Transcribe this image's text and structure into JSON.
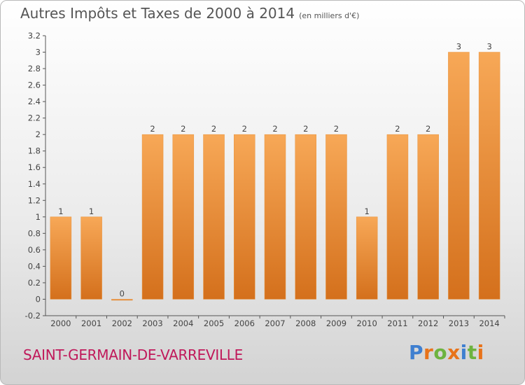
{
  "title": "Autres Impôts et Taxes de 2000 à 2014",
  "subtitle": "(en milliers d'€)",
  "town": "SAINT-GERMAIN-DE-VARREVILLE",
  "logo": {
    "letters": [
      "P",
      "r",
      "o",
      "x",
      "i",
      "t",
      "i"
    ],
    "colors": [
      "#3f7fd0",
      "#e8731a",
      "#6db33f",
      "#e8731a",
      "#3f7fd0",
      "#6db33f",
      "#e8731a"
    ]
  },
  "colors": {
    "bar_light": "#f7a857",
    "bar_dark": "#d4701c",
    "town": "#c0185a"
  },
  "chart_data": {
    "type": "bar",
    "title": "Autres Impôts et Taxes de 2000 à 2014",
    "subtitle": "(en milliers d'€)",
    "categories": [
      "2000",
      "2001",
      "2002",
      "2003",
      "2004",
      "2005",
      "2006",
      "2007",
      "2008",
      "2009",
      "2010",
      "2011",
      "2012",
      "2013",
      "2014"
    ],
    "values": [
      1,
      1,
      0,
      2,
      2,
      2,
      2,
      2,
      2,
      2,
      1,
      2,
      2,
      3,
      3
    ],
    "value_labels": [
      "1",
      "1",
      "0",
      "2",
      "2",
      "2",
      "2",
      "2",
      "2",
      "2",
      "1",
      "2",
      "2",
      "3",
      "3"
    ],
    "ylim": [
      -0.2,
      3.2
    ],
    "yticks": [
      -0.2,
      0,
      0.2,
      0.4,
      0.6,
      0.8,
      1,
      1.2,
      1.4,
      1.6,
      1.8,
      2,
      2.2,
      2.4,
      2.6,
      2.8,
      3,
      3.2
    ],
    "ytick_labels": [
      "-0.2",
      "0",
      "0.2",
      "0.4",
      "0.6",
      "0.8",
      "1",
      "1.2",
      "1.4",
      "1.6",
      "1.8",
      "2",
      "2.2",
      "2.4",
      "2.6",
      "2.8",
      "3",
      "3.2"
    ],
    "grid": false,
    "xlabel": "",
    "ylabel": ""
  }
}
